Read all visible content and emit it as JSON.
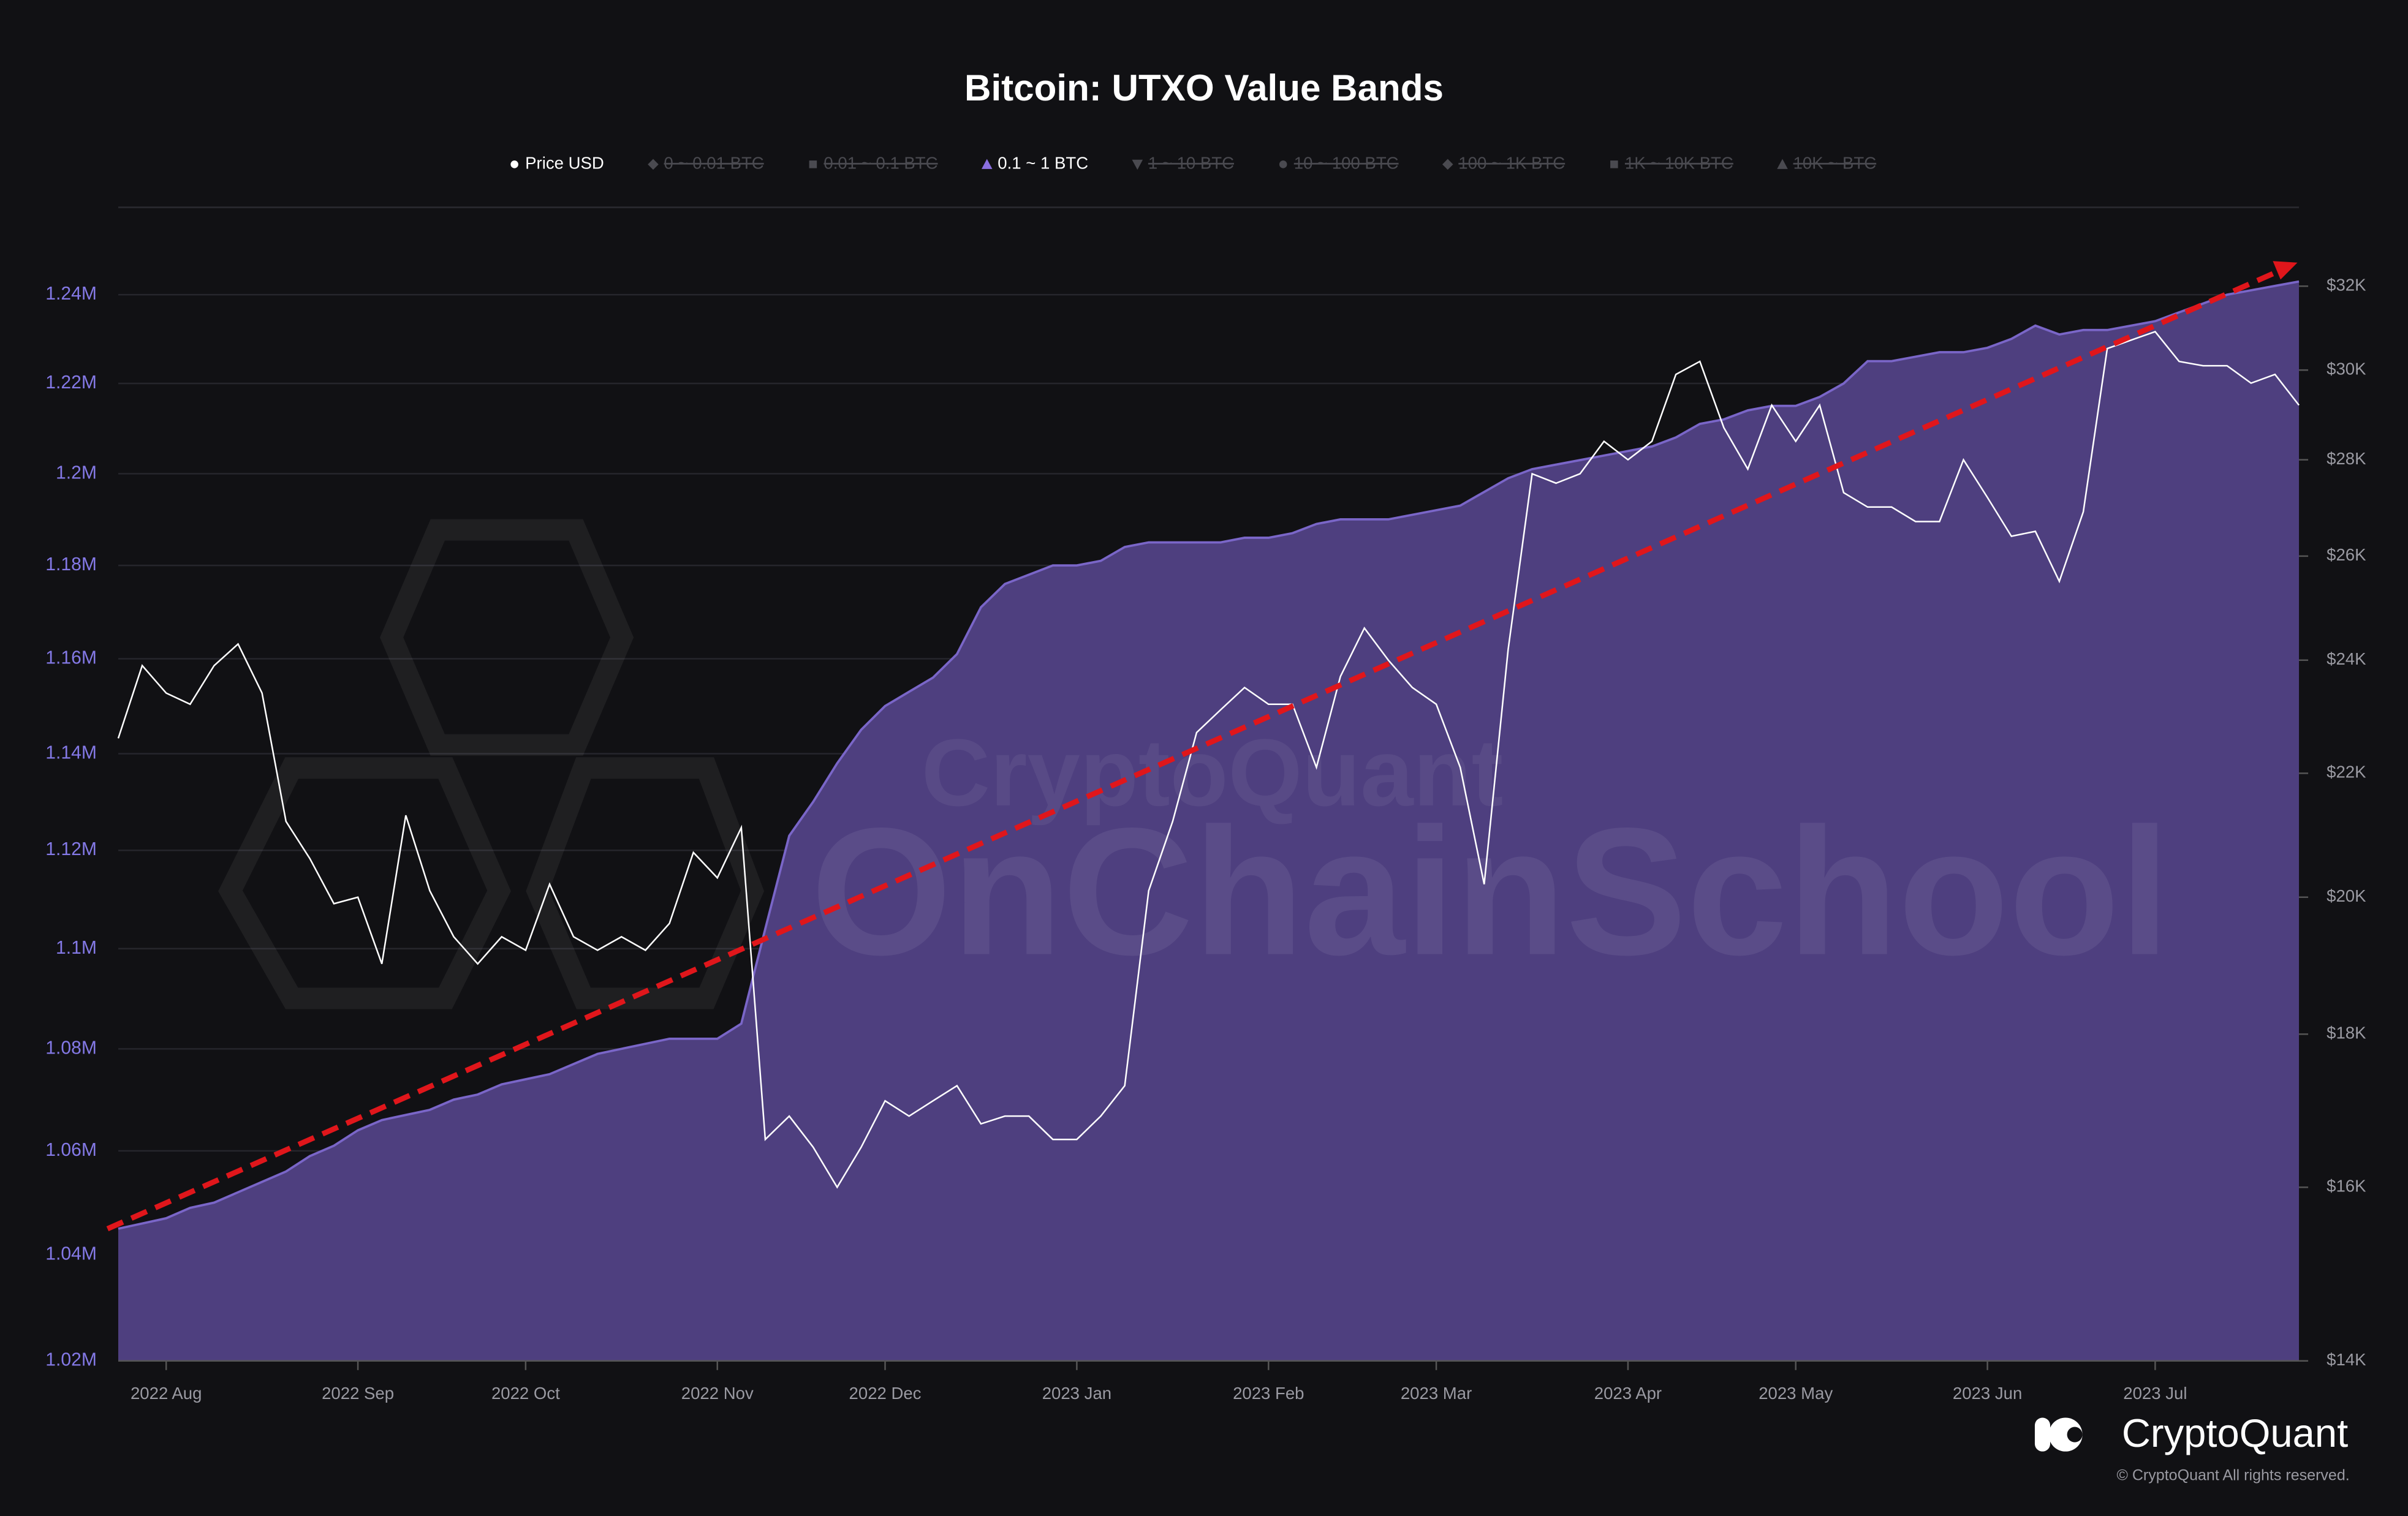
{
  "chart_data": {
    "type": "area",
    "title": "Bitcoin: UTXO Value Bands",
    "categories": [
      null,
      null,
      "2022 Aug",
      null,
      null,
      null,
      null,
      null,
      null,
      null,
      "2022 Sep",
      null,
      null,
      null,
      null,
      null,
      null,
      "2022 Oct",
      null,
      null,
      null,
      null,
      null,
      null,
      null,
      "2022 Nov",
      null,
      null,
      null,
      null,
      null,
      null,
      "2022 Dec",
      null,
      null,
      null,
      null,
      null,
      null,
      null,
      "2023 Jan",
      null,
      null,
      null,
      null,
      null,
      null,
      null,
      "2023 Feb",
      null,
      null,
      null,
      null,
      null,
      null,
      "2023 Mar",
      null,
      null,
      null,
      null,
      null,
      null,
      null,
      "2023 Apr",
      null,
      null,
      null,
      null,
      null,
      null,
      "2023 May",
      null,
      null,
      null,
      null,
      null,
      null,
      null,
      "2023 Jun",
      null,
      null,
      null,
      null,
      null,
      null,
      "2023 Jul",
      null,
      null,
      null,
      null,
      null,
      null
    ],
    "series": [
      {
        "name": "Price USD",
        "type": "line",
        "axis": "y2",
        "color": "#ffffff",
        "values": [
          22600,
          23900,
          23400,
          23200,
          23900,
          24300,
          23400,
          21200,
          20600,
          19900,
          20000,
          19000,
          21300,
          20100,
          19400,
          19000,
          19400,
          19200,
          20200,
          19400,
          19200,
          19400,
          19200,
          19600,
          20700,
          20300,
          21100,
          16600,
          16900,
          16500,
          16000,
          16500,
          17100,
          16900,
          17100,
          17300,
          16800,
          16900,
          16900,
          16600,
          16600,
          16900,
          17300,
          20100,
          21200,
          22700,
          23100,
          23500,
          23200,
          23200,
          22100,
          23700,
          24600,
          24000,
          23500,
          23200,
          22100,
          20200,
          24200,
          27700,
          27500,
          27700,
          28400,
          28000,
          28400,
          29900,
          30200,
          28700,
          27800,
          29200,
          28400,
          29200,
          27300,
          27000,
          27000,
          26700,
          26700,
          28000,
          27200,
          26400,
          26500,
          25500,
          26900,
          30500,
          30700,
          30900,
          30200,
          30100,
          30100,
          29700,
          29900,
          29200
        ]
      },
      {
        "name": "0.1 ~ 1 BTC",
        "type": "area",
        "axis": "y",
        "color": "#4e3f7f",
        "values": [
          1045000,
          1046000,
          1047000,
          1049000,
          1050000,
          1052000,
          1054000,
          1056000,
          1059000,
          1061000,
          1064000,
          1066000,
          1067000,
          1068000,
          1070000,
          1071000,
          1073000,
          1074000,
          1075000,
          1077000,
          1079000,
          1080000,
          1081000,
          1082000,
          1082000,
          1082000,
          1085000,
          1104000,
          1123000,
          1130000,
          1138000,
          1145000,
          1150000,
          1153000,
          1156000,
          1161000,
          1171000,
          1176000,
          1178000,
          1180000,
          1180000,
          1181000,
          1184000,
          1185000,
          1185000,
          1185000,
          1185000,
          1186000,
          1186000,
          1187000,
          1189000,
          1190000,
          1190000,
          1190000,
          1191000,
          1192000,
          1193000,
          1196000,
          1199000,
          1201000,
          1202000,
          1203000,
          1204000,
          1205000,
          1206000,
          1208000,
          1211000,
          1212000,
          1214000,
          1215000,
          1215000,
          1217000,
          1220000,
          1225000,
          1225000,
          1226000,
          1227000,
          1227000,
          1228000,
          1230000,
          1233000,
          1231000,
          1232000,
          1232000,
          1233000,
          1234000,
          1236000,
          1238000,
          1240000,
          1241000,
          1242000,
          1243000
        ]
      }
    ],
    "hidden_series": [
      "0 ~ 0.01 BTC",
      "0.01 ~ 0.1 BTC",
      "1 ~ 10 BTC",
      "10 ~ 100 BTC",
      "100 ~ 1K BTC",
      "1K ~ 10K BTC",
      "10K ~ BTC"
    ],
    "ylim": [
      1020000,
      1260000
    ],
    "ylog": true,
    "yticks": [
      {
        "value": 1020000,
        "label": "1.02M"
      },
      {
        "value": 1040000,
        "label": "1.04M"
      },
      {
        "value": 1060000,
        "label": "1.06M"
      },
      {
        "value": 1080000,
        "label": "1.08M"
      },
      {
        "value": 1100000,
        "label": "1.1M"
      },
      {
        "value": 1120000,
        "label": "1.12M"
      },
      {
        "value": 1140000,
        "label": "1.14M"
      },
      {
        "value": 1160000,
        "label": "1.16M"
      },
      {
        "value": 1180000,
        "label": "1.18M"
      },
      {
        "value": 1200000,
        "label": "1.2M"
      },
      {
        "value": 1220000,
        "label": "1.22M"
      },
      {
        "value": 1240000,
        "label": "1.24M"
      }
    ],
    "y2lim": [
      14000,
      34000
    ],
    "y2log": true,
    "y2ticks": [
      {
        "value": 14000,
        "label": "$14K"
      },
      {
        "value": 16000,
        "label": "$16K"
      },
      {
        "value": 18000,
        "label": "$18K"
      },
      {
        "value": 20000,
        "label": "$20K"
      },
      {
        "value": 22000,
        "label": "$22K"
      },
      {
        "value": 24000,
        "label": "$24K"
      },
      {
        "value": 26000,
        "label": "$26K"
      },
      {
        "value": 28000,
        "label": "$28K"
      },
      {
        "value": 30000,
        "label": "$30K"
      },
      {
        "value": 32000,
        "label": "$32K"
      }
    ],
    "grid": true,
    "watermark": [
      "CryptoQuant",
      "OnChainSchool"
    ],
    "brand": "CryptoQuant",
    "copyright": "© CryptoQuant All rights reserved."
  }
}
